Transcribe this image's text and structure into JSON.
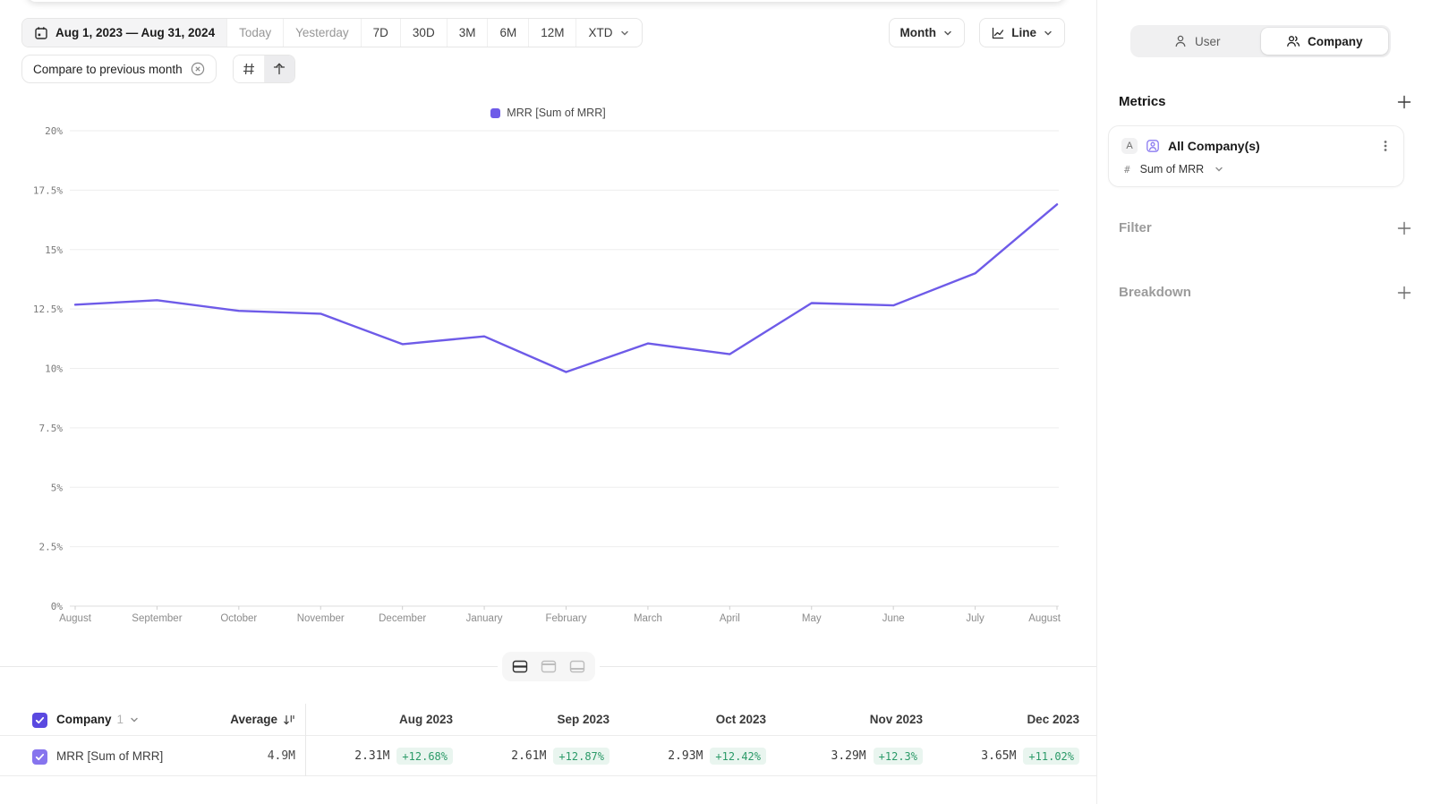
{
  "toolbar": {
    "date_range": "Aug 1, 2023 — Aug 31, 2024",
    "presets": [
      "Today",
      "Yesterday",
      "7D",
      "30D",
      "3M",
      "6M",
      "12M"
    ],
    "xtd_label": "XTD",
    "granularity_label": "Month",
    "chart_type_label": "Line",
    "compare_chip": "Compare to previous month"
  },
  "sidebar": {
    "view_toggle": {
      "user_label": "User",
      "company_label": "Company",
      "selected": "Company"
    },
    "metrics_title": "Metrics",
    "metric_card": {
      "badge": "A",
      "name": "All Company(s)",
      "agg_prefix": "#",
      "aggregation": "Sum of MRR"
    },
    "filter_label": "Filter",
    "breakdown_label": "Breakdown"
  },
  "chart_data": {
    "type": "line",
    "title": "",
    "legend": [
      "MRR [Sum of MRR]"
    ],
    "x": [
      "August",
      "September",
      "October",
      "November",
      "December",
      "January",
      "February",
      "March",
      "April",
      "May",
      "June",
      "July",
      "August"
    ],
    "series": [
      {
        "name": "MRR [Sum of MRR]",
        "values": [
          12.68,
          12.87,
          12.42,
          12.3,
          11.02,
          11.35,
          9.85,
          11.05,
          10.6,
          12.75,
          12.65,
          14.0,
          16.9
        ]
      }
    ],
    "ylim": [
      0,
      20
    ],
    "ytick_step": 2.5,
    "ytick_suffix": "%",
    "grid": "horizontal",
    "legend_position": "top-center",
    "line_color": "#6e5be8"
  },
  "table": {
    "group_label": "Company",
    "group_count": "1",
    "average_label": "Average",
    "months": [
      "Aug 2023",
      "Sep 2023",
      "Oct 2023",
      "Nov 2023",
      "Dec 2023"
    ],
    "rows": [
      {
        "name": "MRR [Sum of MRR]",
        "average": "4.9M"
      }
    ],
    "values": [
      [
        "2.31M",
        "+12.68%"
      ],
      [
        "2.61M",
        "+12.87%"
      ],
      [
        "2.93M",
        "+12.42%"
      ],
      [
        "3.29M",
        "+12.3%"
      ],
      [
        "3.65M",
        "+11.02%"
      ]
    ]
  },
  "colors": {
    "accent": "#6e5be8",
    "positive_text": "#2b9a68",
    "positive_bg": "#e9f5ef",
    "header_checkbox": "#5a49e0",
    "row_checkbox": "#8674ee"
  }
}
